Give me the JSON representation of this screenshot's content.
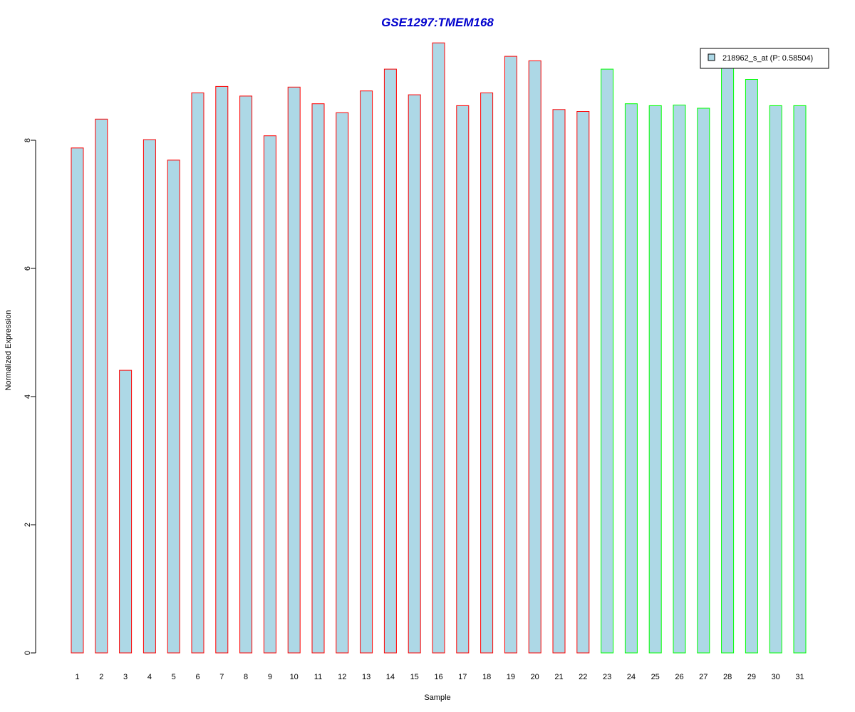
{
  "chart_data": {
    "type": "bar",
    "title": "GSE1297:TMEM168",
    "xlabel": "Sample",
    "ylabel": "Normalized Expression",
    "ylim": [
      0,
      9.6
    ],
    "yticks": [
      0,
      2,
      4,
      6,
      8
    ],
    "grid": false,
    "legend_position": "top-right",
    "categories": [
      "1",
      "2",
      "3",
      "4",
      "5",
      "6",
      "7",
      "8",
      "9",
      "10",
      "11",
      "12",
      "13",
      "14",
      "15",
      "16",
      "17",
      "18",
      "19",
      "20",
      "21",
      "22",
      "23",
      "24",
      "25",
      "26",
      "27",
      "28",
      "29",
      "30",
      "31"
    ],
    "series": [
      {
        "name": "218962_s_at (P: 0.58504)",
        "values": [
          7.88,
          8.33,
          4.41,
          8.01,
          7.69,
          8.74,
          8.84,
          8.69,
          8.07,
          8.83,
          8.57,
          8.43,
          8.77,
          9.11,
          8.71,
          9.52,
          8.54,
          8.74,
          9.31,
          9.24,
          8.48,
          8.45,
          9.11,
          8.57,
          8.54,
          8.55,
          8.5,
          9.18,
          8.95,
          8.54,
          8.54
        ],
        "fill": "#add8e6",
        "groups": [
          1,
          1,
          1,
          1,
          1,
          1,
          1,
          1,
          1,
          1,
          1,
          1,
          1,
          1,
          1,
          1,
          1,
          1,
          1,
          1,
          1,
          1,
          2,
          2,
          2,
          2,
          2,
          2,
          2,
          2,
          2
        ]
      }
    ],
    "group_colors": {
      "1": "#ff0000",
      "2": "#00ff00"
    },
    "title_color": "#0000cd"
  }
}
